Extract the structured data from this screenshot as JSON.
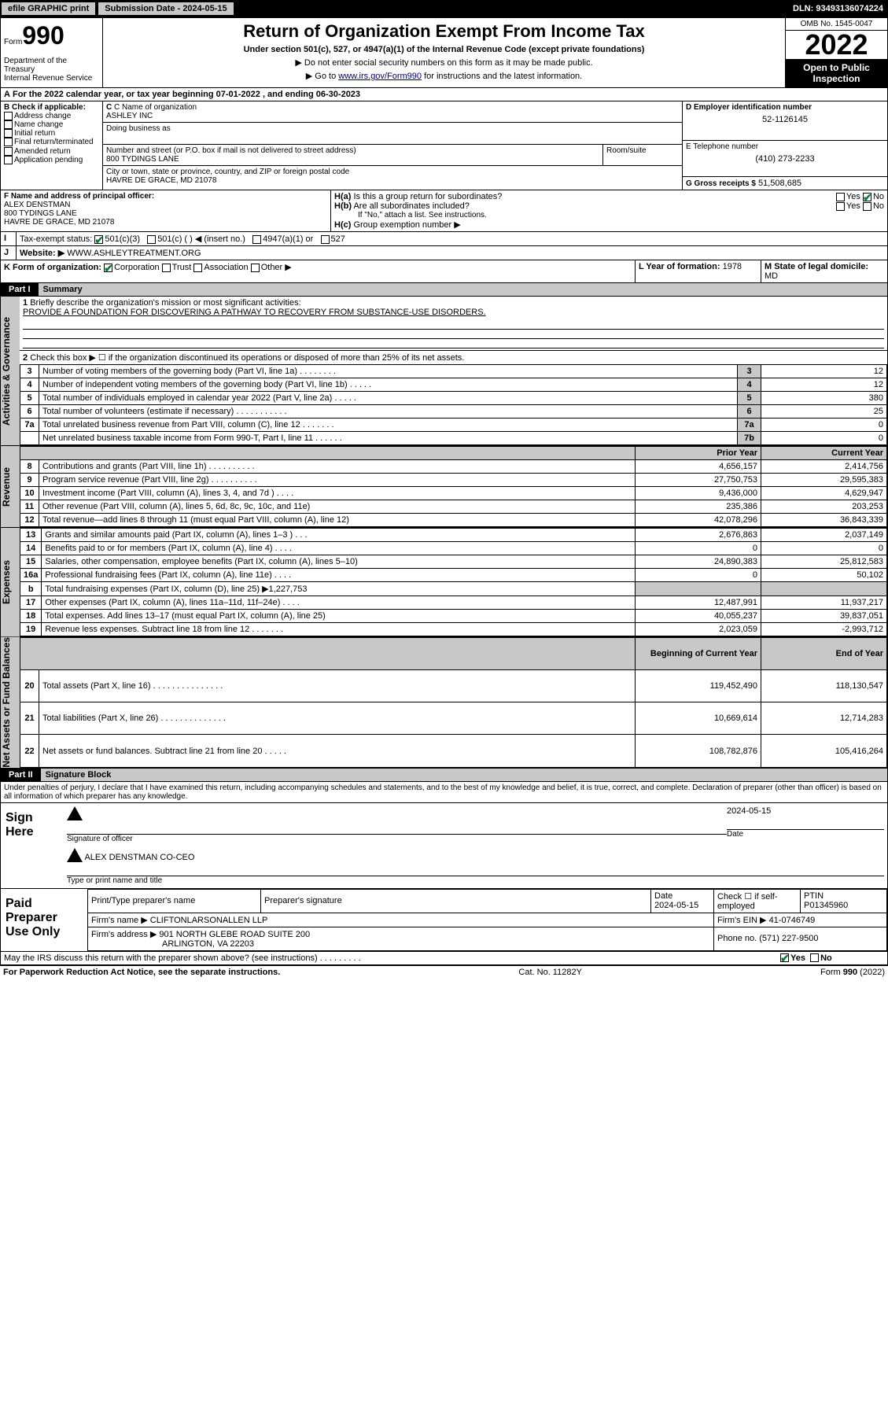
{
  "topbar": {
    "efile": "efile GRAPHIC print",
    "subdate_label": "Submission Date - 2024-05-15",
    "dln": "DLN: 93493136074224"
  },
  "header": {
    "form_prefix": "Form",
    "form_num": "990",
    "title": "Return of Organization Exempt From Income Tax",
    "subtitle": "Under section 501(c), 527, or 4947(a)(1) of the Internal Revenue Code (except private foundations)",
    "note1": "▶ Do not enter social security numbers on this form as it may be made public.",
    "note2_pre": "▶ Go to ",
    "note2_link": "www.irs.gov/Form990",
    "note2_post": " for instructions and the latest information.",
    "dept": "Department of the Treasury\nInternal Revenue Service",
    "omb": "OMB No. 1545-0047",
    "year": "2022",
    "open": "Open to Public Inspection"
  },
  "lineA": "For the 2022 calendar year, or tax year beginning 07-01-2022    , and ending 06-30-2023",
  "boxB": {
    "label": "B Check if applicable:",
    "opts": [
      "Address change",
      "Name change",
      "Initial return",
      "Final return/terminated",
      "Amended return",
      "Application pending"
    ]
  },
  "boxC": {
    "label_name": "C Name of organization",
    "name": "ASHLEY INC",
    "dba_label": "Doing business as",
    "dba": "",
    "addr_label": "Number and street (or P.O. box if mail is not delivered to street address)",
    "room_label": "Room/suite",
    "addr": "800 TYDINGS LANE",
    "city_label": "City or town, state or province, country, and ZIP or foreign postal code",
    "city": "HAVRE DE GRACE, MD  21078"
  },
  "boxD": {
    "label": "D Employer identification number",
    "value": "52-1126145"
  },
  "boxE": {
    "label": "E Telephone number",
    "value": "(410) 273-2233"
  },
  "boxG": {
    "label": "G Gross receipts $",
    "value": "51,508,685"
  },
  "boxF": {
    "label": "F Name and address of principal officer:",
    "name": "ALEX DENSTMAN",
    "addr1": "800 TYDINGS LANE",
    "addr2": "HAVRE DE GRACE, MD  21078"
  },
  "boxH": {
    "a": "Is this a group return for subordinates?",
    "b": "Are all subordinates included?",
    "note": "If \"No,\" attach a list. See instructions.",
    "c": "Group exemption number ▶",
    "yes": "Yes",
    "no": "No"
  },
  "rowI": {
    "label": "Tax-exempt status:",
    "opts": [
      "501(c)(3)",
      "501(c) (   ) ◀ (insert no.)",
      "4947(a)(1) or",
      "527"
    ]
  },
  "rowJ": {
    "label": "Website: ▶",
    "value": "WWW.ASHLEYTREATMENT.ORG"
  },
  "rowK": {
    "label": "K Form of organization:",
    "opts": [
      "Corporation",
      "Trust",
      "Association",
      "Other ▶"
    ]
  },
  "rowL": {
    "label": "L Year of formation:",
    "value": "1978"
  },
  "rowM": {
    "label": "M State of legal domicile:",
    "value": "MD"
  },
  "part1": {
    "label": "Part I",
    "title": "Summary"
  },
  "p1_mission_label": "Briefly describe the organization's mission or most significant activities:",
  "p1_mission": "PROVIDE A FOUNDATION FOR DISCOVERING A PATHWAY TO RECOVERY FROM SUBSTANCE-USE DISORDERS.",
  "p1_line2": "Check this box ▶ ☐  if the organization discontinued its operations or disposed of more than 25% of its net assets.",
  "gov_rows": [
    {
      "n": "3",
      "t": "Number of voting members of the governing body (Part VI, line 1a) . . . . . . . .",
      "c": "3",
      "v": "12"
    },
    {
      "n": "4",
      "t": "Number of independent voting members of the governing body (Part VI, line 1b)  .    .    .    .    .",
      "c": "4",
      "v": "12"
    },
    {
      "n": "5",
      "t": "Total number of individuals employed in calendar year 2022 (Part V, line 2a)  .    .    .    .    .",
      "c": "5",
      "v": "380"
    },
    {
      "n": "6",
      "t": "Total number of volunteers (estimate if necessary)   .     .     .     .     .     .     .     .     .     .     .",
      "c": "6",
      "v": "25"
    },
    {
      "n": "7a",
      "t": "Total unrelated business revenue from Part VIII, column (C), line 12 .    .    .    .    .    .    .",
      "c": "7a",
      "v": "0"
    },
    {
      "n": "",
      "t": "Net unrelated business taxable income from Form 990-T, Part I, line 11   .    .    .    .    .    .",
      "c": "7b",
      "v": "0"
    }
  ],
  "py_label": "Prior Year",
  "cy_label": "Current Year",
  "rev_rows": [
    {
      "n": "8",
      "t": "Contributions and grants (Part VIII, line 1h)   .     .     .     .     .     .     .     .     .     .",
      "py": "4,656,157",
      "cy": "2,414,756"
    },
    {
      "n": "9",
      "t": "Program service revenue (Part VIII, line 2g)   .    .    .    .    .    .    .    .    .    .",
      "py": "27,750,753",
      "cy": "29,595,383"
    },
    {
      "n": "10",
      "t": "Investment income (Part VIII, column (A), lines 3, 4, and 7d )   .    .    .    .",
      "py": "9,436,000",
      "cy": "4,629,947"
    },
    {
      "n": "11",
      "t": "Other revenue (Part VIII, column (A), lines 5, 6d, 8c, 9c, 10c, and 11e)",
      "py": "235,386",
      "cy": "203,253"
    },
    {
      "n": "12",
      "t": "Total revenue—add lines 8 through 11 (must equal Part VIII, column (A), line 12)",
      "py": "42,078,296",
      "cy": "36,843,339"
    }
  ],
  "exp_rows": [
    {
      "n": "13",
      "t": "Grants and similar amounts paid (Part IX, column (A), lines 1–3 ) .    .    .",
      "py": "2,676,863",
      "cy": "2,037,149"
    },
    {
      "n": "14",
      "t": "Benefits paid to or for members (Part IX, column (A), line 4)   .    .    .    .",
      "py": "0",
      "cy": "0"
    },
    {
      "n": "15",
      "t": "Salaries, other compensation, employee benefits (Part IX, column (A), lines 5–10)",
      "py": "24,890,383",
      "cy": "25,812,583"
    },
    {
      "n": "16a",
      "t": "Professional fundraising fees (Part IX, column (A), line 11e)   .    .    .    .",
      "py": "0",
      "cy": "50,102"
    },
    {
      "n": "b",
      "t": "Total fundraising expenses (Part IX, column (D), line 25) ▶1,227,753",
      "py": "",
      "cy": ""
    },
    {
      "n": "17",
      "t": "Other expenses (Part IX, column (A), lines 11a–11d, 11f–24e)   .    .    .    .",
      "py": "12,487,991",
      "cy": "11,937,217"
    },
    {
      "n": "18",
      "t": "Total expenses. Add lines 13–17 (must equal Part IX, column (A), line 25)",
      "py": "40,055,237",
      "cy": "39,837,051"
    },
    {
      "n": "19",
      "t": "Revenue less expenses. Subtract line 18 from line 12 .    .    .    .    .    .    .",
      "py": "2,023,059",
      "cy": "-2,993,712"
    }
  ],
  "boy_label": "Beginning of Current Year",
  "eoy_label": "End of Year",
  "na_rows": [
    {
      "n": "20",
      "t": "Total assets (Part X, line 16)   .    .    .    .    .    .    .    .    .    .    .    .    .    .    .",
      "py": "119,452,490",
      "cy": "118,130,547"
    },
    {
      "n": "21",
      "t": "Total liabilities (Part X, line 26)   .    .    .    .    .    .    .    .    .    .    .    .    .    .",
      "py": "10,669,614",
      "cy": "12,714,283"
    },
    {
      "n": "22",
      "t": "Net assets or fund balances. Subtract line 21 from line 20 .    .    .    .    .",
      "py": "108,782,876",
      "cy": "105,416,264"
    }
  ],
  "part2": {
    "label": "Part II",
    "title": "Signature Block"
  },
  "sig_decl": "Under penalties of perjury, I declare that I have examined this return, including accompanying schedules and statements, and to the best of my knowledge and belief, it is true, correct, and complete. Declaration of preparer (other than officer) is based on all information of which preparer has any knowledge.",
  "sign_here": "Sign Here",
  "sig_officer_label": "Signature of officer",
  "sig_date_label": "Date",
  "sig_date": "2024-05-15",
  "sig_name": "ALEX DENSTMAN  CO-CEO",
  "sig_name_label": "Type or print name and title",
  "paid": {
    "label": "Paid Preparer Use Only",
    "h1": "Print/Type preparer's name",
    "h2": "Preparer's signature",
    "h3": "Date",
    "date": "2024-05-15",
    "h4": "Check ☐ if self-employed",
    "h5": "PTIN",
    "ptin": "P01345960",
    "firm_label": "Firm's name    ▶",
    "firm": "CLIFTONLARSONALLEN LLP",
    "ein_label": "Firm's EIN ▶",
    "ein": "41-0746749",
    "addr_label": "Firm's address ▶",
    "addr1": "901 NORTH GLEBE ROAD SUITE 200",
    "addr2": "ARLINGTON, VA  22203",
    "phone_label": "Phone no.",
    "phone": "(571) 227-9500"
  },
  "discuss": "May the IRS discuss this return with the preparer shown above? (see instructions)  .    .    .    .    .    .    .    .    .",
  "footer": {
    "left": "For Paperwork Reduction Act Notice, see the separate instructions.",
    "mid": "Cat. No. 11282Y",
    "right": "Form 990 (2022)"
  },
  "sections": {
    "gov": "Activities & Governance",
    "rev": "Revenue",
    "exp": "Expenses",
    "na": "Net Assets or Fund Balances"
  }
}
